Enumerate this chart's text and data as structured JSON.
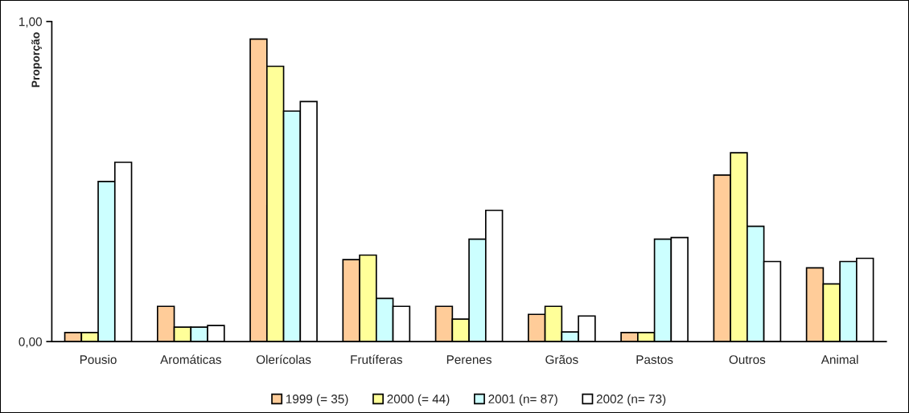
{
  "chart_data": {
    "type": "bar",
    "ylabel": "Proporção",
    "categories": [
      "Pousio",
      "Aromáticas",
      "Olerícolas",
      "Frutíferas",
      "Perenes",
      "Grãos",
      "Pastos",
      "Outros",
      "Animal"
    ],
    "series": [
      {
        "name": "1999 (= 35)",
        "color": "#ffcc99",
        "values": [
          0.028,
          0.11,
          0.945,
          0.256,
          0.11,
          0.085,
          0.028,
          0.52,
          0.23
        ]
      },
      {
        "name": "2000 (= 44)",
        "color": "#ffff99",
        "values": [
          0.028,
          0.045,
          0.86,
          0.27,
          0.07,
          0.11,
          0.028,
          0.59,
          0.18
        ]
      },
      {
        "name": "2001 (n= 87)",
        "color": "#ccffff",
        "values": [
          0.5,
          0.045,
          0.72,
          0.135,
          0.32,
          0.03,
          0.32,
          0.36,
          0.25
        ]
      },
      {
        "name": "2002 (n= 73)",
        "color": "#ffffff",
        "values": [
          0.56,
          0.05,
          0.75,
          0.11,
          0.41,
          0.08,
          0.325,
          0.25,
          0.26
        ]
      }
    ],
    "ylim": [
      0,
      1
    ],
    "yticks": [
      {
        "value": 0,
        "label": "0,00"
      },
      {
        "value": 1,
        "label": "1,00"
      }
    ],
    "grid": false,
    "legend": "bottom"
  }
}
